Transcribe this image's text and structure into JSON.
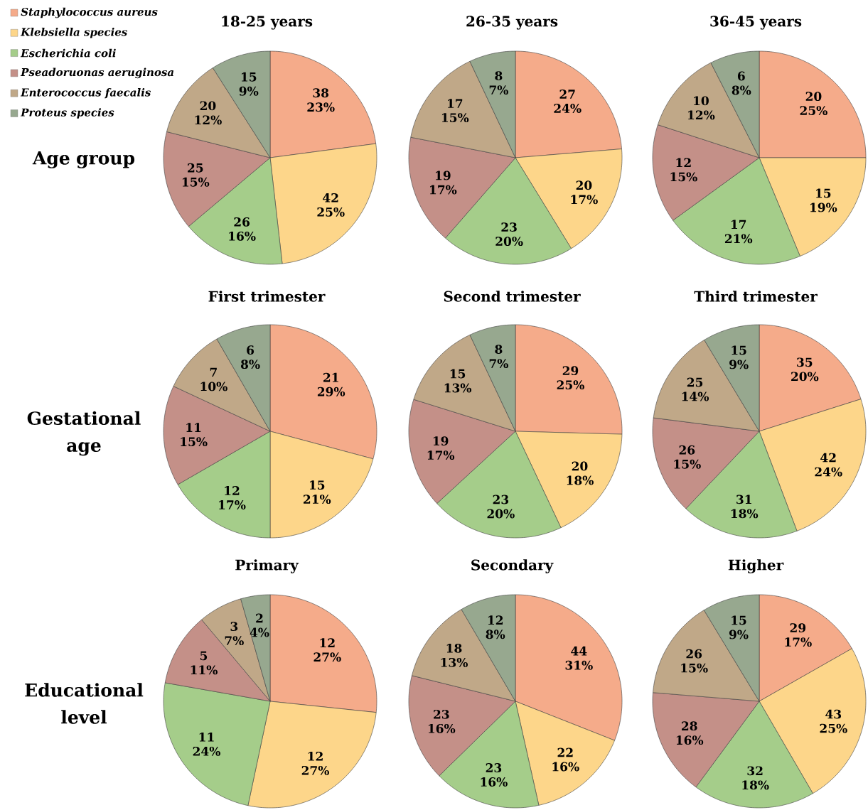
{
  "chart_data": [
    {
      "type": "pie",
      "title": "18-25 years",
      "annotations": [
        "Age group"
      ],
      "legend": "top left",
      "categories": [
        "Staphylococcus aureus",
        "Klebsiella species",
        "Escherichia coli",
        "Pseadoruonas aeruginosa",
        "Enterococcus faecalis",
        "Proteus species"
      ],
      "values": [
        38,
        42,
        26,
        25,
        20,
        15
      ],
      "value_labels": [
        "38 23%",
        "42 25%",
        "26 16%",
        "25 15%",
        "20 12%",
        "15 9%"
      ],
      "colors": [
        "#f5ab8a",
        "#fdd68a",
        "#a5cd8a",
        "#c49088",
        "#c0a888",
        "#97a88f"
      ]
    },
    {
      "type": "pie",
      "title": "26-35 years",
      "values": [
        27,
        20,
        23,
        19,
        17,
        8
      ],
      "value_labels": [
        "27 24%",
        "20 17%",
        "23 20%",
        "19 17%",
        "17 15%",
        "8 7%"
      ],
      "colors": [
        "#f5ab8a",
        "#fdd68a",
        "#a5cd8a",
        "#c49088",
        "#c0a888",
        "#97a88f"
      ]
    },
    {
      "type": "pie",
      "title": "36-45 years",
      "values": [
        20,
        15,
        17,
        12,
        10,
        6
      ],
      "value_labels": [
        "20 25%",
        "15 19%",
        "17 21%",
        "12 15%",
        "10 12%",
        "6 8%"
      ],
      "colors": [
        "#f5ab8a",
        "#fdd68a",
        "#a5cd8a",
        "#c49088",
        "#c0a888",
        "#97a88f"
      ]
    },
    {
      "type": "pie",
      "title": "First trimester",
      "annotations": [
        "Gestational age"
      ],
      "values": [
        21,
        15,
        12,
        11,
        7,
        6
      ],
      "value_labels": [
        "21 29%",
        "15 21%",
        "12 17%",
        "11 15%",
        "7 10%",
        "6 8%"
      ],
      "colors": [
        "#f5ab8a",
        "#fdd68a",
        "#a5cd8a",
        "#c49088",
        "#c0a888",
        "#97a88f"
      ]
    },
    {
      "type": "pie",
      "title": "Second trimester",
      "values": [
        29,
        20,
        23,
        19,
        15,
        8
      ],
      "value_labels": [
        "29 25%",
        "20 18%",
        "23 20%",
        "19 17%",
        "15 13%",
        "8 7%"
      ],
      "colors": [
        "#f5ab8a",
        "#fdd68a",
        "#a5cd8a",
        "#c49088",
        "#c0a888",
        "#97a88f"
      ]
    },
    {
      "type": "pie",
      "title": "Third trimester",
      "values": [
        35,
        42,
        31,
        26,
        25,
        15
      ],
      "value_labels": [
        "35 20%",
        "42 24%",
        "31 18%",
        "26 15%",
        "25 14%",
        "15 9%"
      ],
      "colors": [
        "#f5ab8a",
        "#fdd68a",
        "#a5cd8a",
        "#c49088",
        "#c0a888",
        "#97a88f"
      ]
    },
    {
      "type": "pie",
      "title": "Primary",
      "annotations": [
        "Educational level"
      ],
      "values": [
        12,
        12,
        11,
        5,
        3,
        2
      ],
      "value_labels": [
        "12 27%",
        "12 27%",
        "11 24%",
        "5 11%",
        "3 7%",
        "2 4%"
      ],
      "colors": [
        "#f5ab8a",
        "#fdd68a",
        "#a5cd8a",
        "#c49088",
        "#c0a888",
        "#97a88f"
      ]
    },
    {
      "type": "pie",
      "title": "Secondary",
      "values": [
        44,
        22,
        23,
        23,
        18,
        12
      ],
      "value_labels": [
        "44 31%",
        "22 16%",
        "23 16%",
        "23 16%",
        "18 13%",
        "12 8%"
      ],
      "colors": [
        "#f5ab8a",
        "#fdd68a",
        "#a5cd8a",
        "#c49088",
        "#c0a888",
        "#97a88f"
      ]
    },
    {
      "type": "pie",
      "title": "Higher",
      "values": [
        29,
        43,
        32,
        28,
        26,
        15
      ],
      "value_labels": [
        "29 17%",
        "43 25%",
        "32 18%",
        "28 16%",
        "26 15%",
        "15 9%"
      ],
      "colors": [
        "#f5ab8a",
        "#fdd68a",
        "#a5cd8a",
        "#c49088",
        "#c0a888",
        "#97a88f"
      ]
    }
  ]
}
